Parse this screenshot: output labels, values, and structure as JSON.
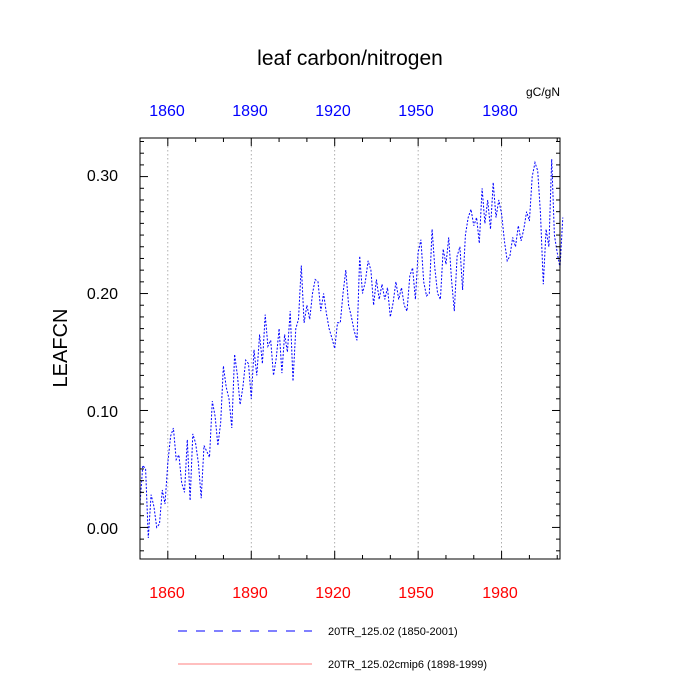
{
  "chart_data": {
    "type": "line",
    "title": "leaf carbon/nitrogen",
    "units": "gC/gN",
    "ylabel": "LEAFCN",
    "xlabel": "",
    "xlim": [
      1850,
      2001
    ],
    "ylim": [
      -0.027,
      0.333
    ],
    "x_ticks": [
      "1860",
      "1890",
      "1920",
      "1950",
      "1980"
    ],
    "x_tick_values": [
      1860,
      1890,
      1920,
      1950,
      1980
    ],
    "y_ticks": [
      "0.00",
      "0.10",
      "0.20",
      "0.30"
    ],
    "y_tick_values": [
      0.0,
      0.1,
      0.2,
      0.3
    ],
    "grid": "vertical-dotted",
    "top_axis_color": "#0000ff",
    "bottom_axis_color": "#ff0000",
    "series": [
      {
        "name": "20TR_125.02 (1850-2001)",
        "color": "#0000ff",
        "style": "dashed",
        "x_start": 1850,
        "values": [
          0.02,
          0.053,
          0.05,
          -0.009,
          0.028,
          0.018,
          0.0,
          0.003,
          0.032,
          0.02,
          0.055,
          0.078,
          0.085,
          0.058,
          0.062,
          0.038,
          0.03,
          0.075,
          0.023,
          0.08,
          0.072,
          0.055,
          0.025,
          0.07,
          0.065,
          0.06,
          0.108,
          0.095,
          0.07,
          0.09,
          0.138,
          0.12,
          0.11,
          0.085,
          0.148,
          0.13,
          0.105,
          0.12,
          0.143,
          0.14,
          0.11,
          0.152,
          0.13,
          0.165,
          0.14,
          0.182,
          0.155,
          0.16,
          0.13,
          0.145,
          0.17,
          0.132,
          0.165,
          0.15,
          0.185,
          0.125,
          0.17,
          0.178,
          0.224,
          0.175,
          0.19,
          0.178,
          0.2,
          0.212,
          0.21,
          0.185,
          0.2,
          0.183,
          0.17,
          0.162,
          0.153,
          0.175,
          0.175,
          0.2,
          0.22,
          0.19,
          0.18,
          0.168,
          0.16,
          0.232,
          0.2,
          0.21,
          0.228,
          0.22,
          0.19,
          0.212,
          0.195,
          0.208,
          0.195,
          0.205,
          0.18,
          0.192,
          0.21,
          0.195,
          0.205,
          0.19,
          0.185,
          0.215,
          0.222,
          0.195,
          0.235,
          0.246,
          0.21,
          0.198,
          0.2,
          0.255,
          0.222,
          0.2,
          0.195,
          0.238,
          0.225,
          0.248,
          0.212,
          0.185,
          0.232,
          0.24,
          0.203,
          0.25,
          0.265,
          0.272,
          0.258,
          0.265,
          0.243,
          0.29,
          0.26,
          0.28,
          0.255,
          0.295,
          0.265,
          0.28,
          0.268,
          0.245,
          0.228,
          0.232,
          0.248,
          0.24,
          0.258,
          0.245,
          0.255,
          0.27,
          0.262,
          0.3,
          0.312,
          0.305,
          0.268,
          0.208,
          0.255,
          0.24,
          0.315,
          0.25,
          0.235,
          0.222,
          0.265
        ]
      },
      {
        "name": "20TR_125.02cmip6 (1898-1999)",
        "color": "#ff7f7f",
        "style": "solid",
        "values": []
      }
    ]
  }
}
